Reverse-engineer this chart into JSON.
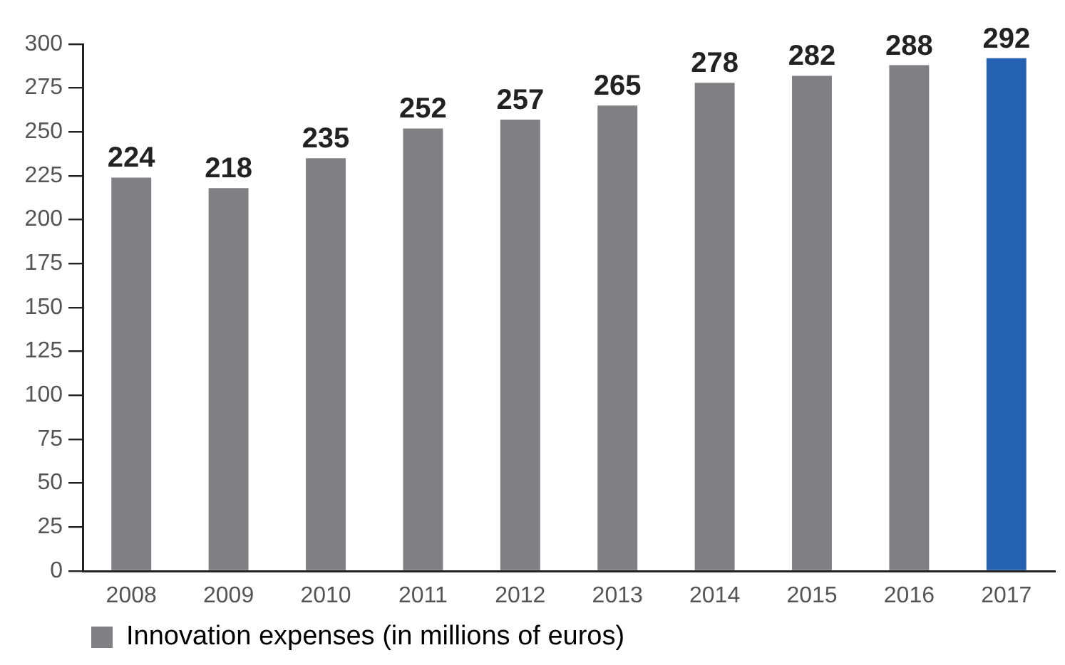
{
  "chart_data": {
    "type": "bar",
    "categories": [
      "2008",
      "2009",
      "2010",
      "2011",
      "2012",
      "2013",
      "2014",
      "2015",
      "2016",
      "2017"
    ],
    "series": [
      {
        "name": "Innovation expenses (in millions of euros)",
        "color": "#808084",
        "colors": [
          "#808084",
          "#808084",
          "#808084",
          "#808084",
          "#808084",
          "#808084",
          "#808084",
          "#808084",
          "#808084",
          "#2462b1"
        ],
        "values": [
          224,
          218,
          235,
          252,
          257,
          265,
          278,
          282,
          288,
          292
        ]
      }
    ],
    "ylim": [
      0,
      300
    ],
    "yticks": [
      0,
      25,
      50,
      75,
      100,
      125,
      150,
      175,
      200,
      225,
      250,
      275,
      300
    ],
    "grid": false,
    "legend": "bottom left",
    "data_labels": true
  }
}
